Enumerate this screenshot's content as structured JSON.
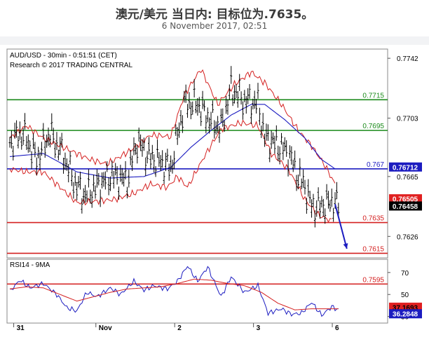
{
  "header": {
    "title": "澳元/美元 当日内: 目标位为.7635。",
    "subtitle": "6 November 2017, 02:51"
  },
  "chart_data": [
    {
      "type": "line",
      "name_label": "AUD/USD - 30min - 0:51:51 (CET)",
      "copyright": "Research © 2017 TRADING CENTRAL",
      "ylim": [
        0.7612,
        0.7748
      ],
      "y_ticks": [
        "0.7742",
        "0.7703",
        "0.7665",
        "0.7626"
      ],
      "y_tick_values": [
        0.7742,
        0.7703,
        0.7665,
        0.7626
      ],
      "x_labels": [
        {
          "label": "31",
          "bar": 4
        },
        {
          "label": "Nov",
          "bar": 53
        },
        {
          "label": "2",
          "bar": 100
        },
        {
          "label": "3",
          "bar": 147
        },
        {
          "label": "6",
          "bar": 194
        }
      ],
      "bar_count": 200,
      "levels": [
        {
          "value": 0.7715,
          "label": "0.7715",
          "color": "#1a8a1a"
        },
        {
          "value": 0.7695,
          "label": "0.7695",
          "color": "#1a8a1a"
        },
        {
          "value": 0.767,
          "label": "0.767",
          "color": "#1c1cc0"
        },
        {
          "value": 0.7635,
          "label": "0.7635",
          "color": "#d42020"
        },
        {
          "value": 0.7615,
          "label": "0.7615",
          "color": "#d42020"
        },
        {
          "value": 0.7595,
          "label": "0.7595",
          "color": "#d42020"
        }
      ],
      "price_tags": [
        {
          "label": "0.76712",
          "value": 0.76712,
          "bg": "#1c1cc0",
          "fg": "#ffffff"
        },
        {
          "label": "0.76505",
          "value": 0.76505,
          "bg": "#e02020",
          "fg": "#ffffff"
        },
        {
          "label": "0.76458",
          "value": 0.76458,
          "bg": "#000000",
          "fg": "#ffffff"
        }
      ],
      "series": [
        {
          "name": "AUD/USD",
          "color": "#000000",
          "anchors": [
            [
              0,
              0.7687
            ],
            [
              8,
              0.7693
            ],
            [
              16,
              0.7676
            ],
            [
              24,
              0.7693
            ],
            [
              32,
              0.7678
            ],
            [
              38,
              0.7662
            ],
            [
              44,
              0.7652
            ],
            [
              52,
              0.7658
            ],
            [
              60,
              0.7665
            ],
            [
              70,
              0.7662
            ],
            [
              76,
              0.7688
            ],
            [
              82,
              0.7678
            ],
            [
              90,
              0.7674
            ],
            [
              96,
              0.767
            ],
            [
              104,
              0.7712
            ],
            [
              112,
              0.7712
            ],
            [
              118,
              0.7703
            ],
            [
              126,
              0.7696
            ],
            [
              132,
              0.7722
            ],
            [
              140,
              0.7714
            ],
            [
              148,
              0.7712
            ],
            [
              152,
              0.769
            ],
            [
              160,
              0.7685
            ],
            [
              166,
              0.768
            ],
            [
              172,
              0.7665
            ],
            [
              176,
              0.7658
            ],
            [
              180,
              0.7645
            ],
            [
              184,
              0.7645
            ],
            [
              192,
              0.7648
            ],
            [
              196,
              0.7647
            ]
          ]
        },
        {
          "name": "MA",
          "color": "#1c1cc0",
          "anchors": [
            [
              0,
              0.7678
            ],
            [
              20,
              0.768
            ],
            [
              40,
              0.7668
            ],
            [
              60,
              0.7664
            ],
            [
              80,
              0.7665
            ],
            [
              96,
              0.7671
            ],
            [
              108,
              0.7684
            ],
            [
              120,
              0.7695
            ],
            [
              132,
              0.7705
            ],
            [
              144,
              0.7712
            ],
            [
              152,
              0.7712
            ],
            [
              164,
              0.7702
            ],
            [
              176,
              0.769
            ],
            [
              186,
              0.7676
            ],
            [
              194,
              0.767
            ]
          ]
        },
        {
          "name": "Bollinger Upper",
          "color": "#d42020",
          "anchors": [
            [
              0,
              0.769
            ],
            [
              10,
              0.7698
            ],
            [
              20,
              0.769
            ],
            [
              36,
              0.7682
            ],
            [
              48,
              0.7676
            ],
            [
              58,
              0.7673
            ],
            [
              72,
              0.7682
            ],
            [
              84,
              0.7692
            ],
            [
              96,
              0.7691
            ],
            [
              104,
              0.7718
            ],
            [
              114,
              0.7735
            ],
            [
              124,
              0.7712
            ],
            [
              134,
              0.7725
            ],
            [
              144,
              0.7733
            ],
            [
              152,
              0.7726
            ],
            [
              162,
              0.7712
            ],
            [
              172,
              0.7695
            ],
            [
              180,
              0.7685
            ],
            [
              188,
              0.7672
            ],
            [
              194,
              0.766
            ]
          ]
        },
        {
          "name": "Bollinger Lower",
          "color": "#d42020",
          "anchors": [
            [
              0,
              0.767
            ],
            [
              10,
              0.7668
            ],
            [
              20,
              0.7668
            ],
            [
              30,
              0.7658
            ],
            [
              40,
              0.7648
            ],
            [
              52,
              0.7649
            ],
            [
              62,
              0.765
            ],
            [
              74,
              0.7654
            ],
            [
              84,
              0.766
            ],
            [
              94,
              0.7658
            ],
            [
              100,
              0.7665
            ],
            [
              106,
              0.7658
            ],
            [
              116,
              0.7678
            ],
            [
              126,
              0.7696
            ],
            [
              138,
              0.77
            ],
            [
              148,
              0.7698
            ],
            [
              156,
              0.768
            ],
            [
              166,
              0.767
            ],
            [
              176,
              0.765
            ],
            [
              184,
              0.764
            ],
            [
              192,
              0.7636
            ]
          ]
        }
      ],
      "forecast": {
        "from": [
          194,
          0.7647
        ],
        "to": [
          201,
          0.7618
        ],
        "color": "#1c1cc0"
      }
    },
    {
      "type": "line",
      "name_label": "RSI14 - 9MA",
      "ylim": [
        24,
        82
      ],
      "y_ticks": [
        "70",
        "50",
        "30"
      ],
      "y_tick_values": [
        70,
        50,
        30
      ],
      "price_tags": [
        {
          "label": "37.1693",
          "value": 37.1693,
          "bg": "#e02020",
          "fg": "#000000"
        },
        {
          "label": "36.2848",
          "value": 36.2848,
          "bg": "#1c1cc0",
          "fg": "#ffffff"
        }
      ],
      "series": [
        {
          "name": "RSI14",
          "color": "#1c1cc0",
          "anchors": [
            [
              0,
              53
            ],
            [
              6,
              63
            ],
            [
              12,
              56
            ],
            [
              20,
              60
            ],
            [
              28,
              50
            ],
            [
              34,
              38
            ],
            [
              40,
              35
            ],
            [
              46,
              52
            ],
            [
              52,
              48
            ],
            [
              60,
              56
            ],
            [
              66,
              50
            ],
            [
              74,
              62
            ],
            [
              80,
              54
            ],
            [
              86,
              58
            ],
            [
              94,
              55
            ],
            [
              100,
              62
            ],
            [
              106,
              76
            ],
            [
              112,
              62
            ],
            [
              118,
              75
            ],
            [
              126,
              48
            ],
            [
              132,
              66
            ],
            [
              140,
              52
            ],
            [
              148,
              58
            ],
            [
              154,
              33
            ],
            [
              162,
              37
            ],
            [
              168,
              32
            ],
            [
              174,
              33
            ],
            [
              180,
              43
            ],
            [
              186,
              31
            ],
            [
              192,
              39
            ],
            [
              196,
              36
            ]
          ]
        },
        {
          "name": "9MA",
          "color": "#d42020",
          "anchors": [
            [
              0,
              55
            ],
            [
              10,
              57
            ],
            [
              20,
              56
            ],
            [
              30,
              50
            ],
            [
              40,
              44
            ],
            [
              50,
              48
            ],
            [
              60,
              52
            ],
            [
              70,
              55
            ],
            [
              80,
              56
            ],
            [
              90,
              57
            ],
            [
              100,
              60
            ],
            [
              110,
              64
            ],
            [
              120,
              63
            ],
            [
              130,
              60
            ],
            [
              140,
              58
            ],
            [
              150,
              52
            ],
            [
              160,
              42
            ],
            [
              170,
              36
            ],
            [
              180,
              37
            ],
            [
              190,
              37
            ],
            [
              196,
              37
            ]
          ]
        }
      ]
    }
  ]
}
